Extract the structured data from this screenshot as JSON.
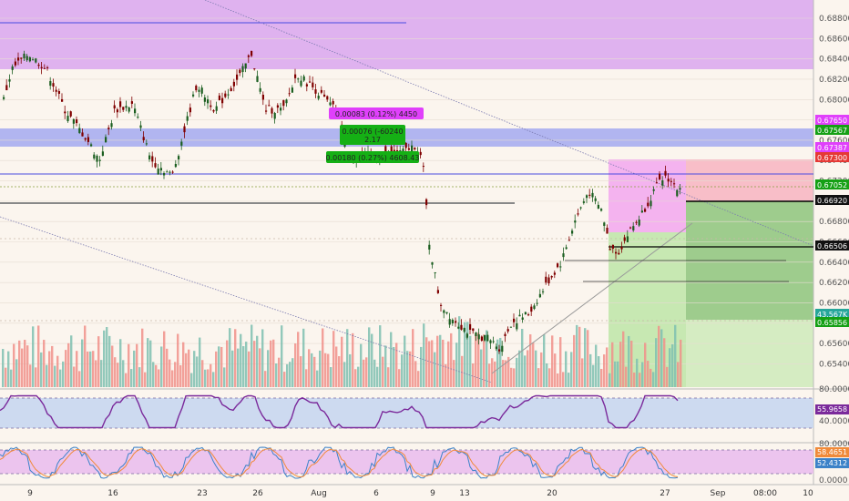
{
  "colors": {
    "up": "#1b5e20",
    "down": "#7f0000",
    "resist_zone": "#d9a6ee",
    "blue_zone": "#a9aef0",
    "vol_up": "#7fbfb0",
    "vol_down": "#f0908a",
    "short_loss": "#f7b8c3",
    "short_profit": "#b6e39e",
    "green_profit": "#7fbe6c",
    "rsi_line": "#7b2a9b",
    "stoch_k": "#3c82c8",
    "stoch_d": "#f08a3a"
  },
  "chart_data": {
    "type": "candlestick",
    "price_range": [
      0.6535,
      0.688
    ],
    "y_ticks": [
      "0.68800",
      "0.68600",
      "0.68400",
      "0.68200",
      "0.68000",
      "0.67800",
      "0.67600",
      "0.67400",
      "0.67200",
      "0.67000",
      "0.66800",
      "0.66600",
      "0.66400",
      "0.66200",
      "0.66000",
      "0.65800",
      "0.65600",
      "0.65400"
    ],
    "x_ticks": [
      "9",
      "16",
      "23",
      "26",
      "Aug",
      "6",
      "9",
      "13",
      "20",
      "27",
      "Sep",
      "08:00",
      "10"
    ],
    "price_tags": [
      {
        "value": "0.67650",
        "color": "#e040fb",
        "text_color": "#ffffff"
      },
      {
        "value": "0.67567",
        "color": "#15a015",
        "text_color": "#ffffff"
      },
      {
        "value": "0.67387",
        "color": "#e040fb",
        "text_color": "#ffffff"
      },
      {
        "value": "0.67300",
        "color": "#e53935",
        "text_color": "#ffffff"
      },
      {
        "value": "0.67052",
        "color": "#15a015",
        "text_color": "#ffffff"
      },
      {
        "value": "0.66920",
        "color": "#111111",
        "text_color": "#ffffff"
      },
      {
        "value": "0.66506",
        "color": "#111111",
        "text_color": "#ffffff"
      },
      {
        "value": "43.567K",
        "color": "#26a69a",
        "text_color": "#ffffff"
      },
      {
        "value": "0.65856",
        "color": "#15a015",
        "text_color": "#ffffff"
      }
    ],
    "measure_labels": [
      {
        "text": "0.00083 (0.12%) 4450",
        "color": "#e040fb"
      },
      {
        "text": "0.00076 (-60240",
        "color": "#15b015"
      },
      {
        "text": "2.17",
        "color": "#15b015"
      },
      {
        "text": "0.00180 (0.27%) 4608.43",
        "color": "#15b015"
      }
    ],
    "rsi": {
      "ticks": [
        "80.0000",
        "40.0000"
      ],
      "last": "55.9658"
    },
    "stoch": {
      "ticks": [
        "80.0000",
        "0.0000"
      ],
      "k_last": "58.4651",
      "d_last": "52.4312"
    }
  }
}
